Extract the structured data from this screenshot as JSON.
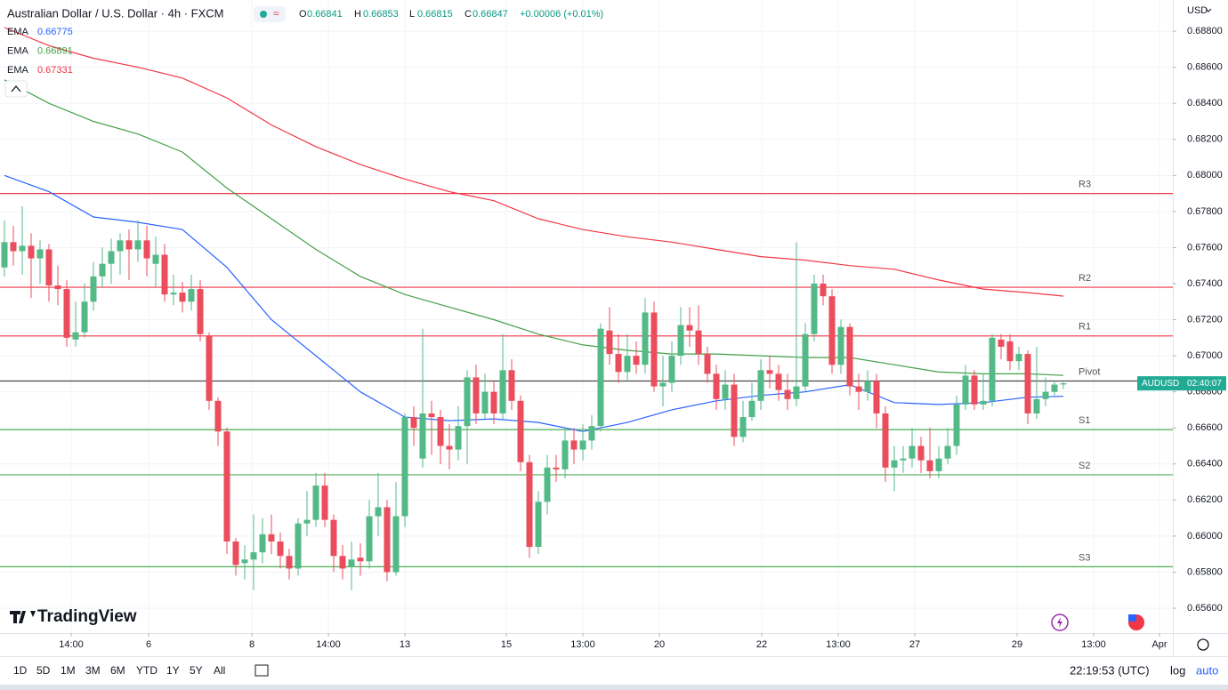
{
  "chart_data": {
    "type": "candlestick",
    "title": "Australian Dollar / U.S. Dollar · 4h · FXCM",
    "ohlc_labels": [
      "O",
      "H",
      "L",
      "C"
    ],
    "change": "+0.00006 (+0.01%)",
    "up_color": "#53b987",
    "down_color": "#eb4d5c",
    "open": [
      0.6749,
      0.6763,
      0.6758,
      0.6761,
      0.6754,
      0.6759,
      0.6739,
      0.6737,
      0.6709,
      0.6713,
      0.673,
      0.6744,
      0.6751,
      0.6758,
      0.6764,
      0.6759,
      0.6764,
      0.6751,
      0.6756,
      0.6734,
      0.6735,
      0.673,
      0.6737,
      0.6711,
      0.6675,
      0.6658,
      0.6597,
      0.6585,
      0.6587,
      0.6591,
      0.6601,
      0.6597,
      0.6589,
      0.6582,
      0.6607,
      0.6609,
      0.6628,
      0.6609,
      0.6589,
      0.6583,
      0.6588,
      0.6586,
      0.6611,
      0.6616,
      0.658,
      0.6611,
      0.6666,
      0.6643,
      0.6668,
      0.6666,
      0.665,
      0.6648,
      0.6661,
      0.6688,
      0.6668,
      0.668,
      0.6668,
      0.6692,
      0.6675,
      0.6641,
      0.6594,
      0.6619,
      0.6638,
      0.6637,
      0.6653,
      0.6648,
      0.6653,
      0.6661,
      0.6714,
      0.6701,
      0.6691,
      0.67,
      0.6695,
      0.6724,
      0.6683,
      0.6685,
      0.67,
      0.6717,
      0.6714,
      0.6701,
      0.669,
      0.6676,
      0.6684,
      0.6655,
      0.6666,
      0.6675,
      0.6692,
      0.669,
      0.6681,
      0.6676,
      0.6683,
      0.6712,
      0.674,
      0.6733,
      0.6695,
      0.6716,
      0.6683,
      0.668,
      0.6686,
      0.6668,
      0.6638,
      0.6642,
      0.6643,
      0.665,
      0.6642,
      0.6636,
      0.6643,
      0.665,
      0.6673,
      0.6689,
      0.6673,
      0.6675,
      0.6709,
      0.6708,
      0.6697,
      0.6701,
      0.6668,
      0.6676,
      0.668,
      0.66841
    ],
    "high": [
      0.6775,
      0.6772,
      0.6783,
      0.6768,
      0.6764,
      0.6762,
      0.675,
      0.6742,
      0.673,
      0.674,
      0.6752,
      0.676,
      0.6765,
      0.6768,
      0.677,
      0.6775,
      0.6772,
      0.6766,
      0.6762,
      0.6745,
      0.6741,
      0.6745,
      0.6742,
      0.6713,
      0.6677,
      0.666,
      0.6599,
      0.6595,
      0.6612,
      0.661,
      0.6612,
      0.6602,
      0.6593,
      0.661,
      0.6625,
      0.6635,
      0.6635,
      0.6612,
      0.6595,
      0.6597,
      0.6596,
      0.662,
      0.6635,
      0.662,
      0.663,
      0.6668,
      0.6672,
      0.6715,
      0.6675,
      0.667,
      0.6662,
      0.6672,
      0.6692,
      0.6695,
      0.669,
      0.6686,
      0.6712,
      0.6698,
      0.6678,
      0.6645,
      0.6625,
      0.6645,
      0.6645,
      0.666,
      0.666,
      0.6662,
      0.6667,
      0.6718,
      0.6727,
      0.6712,
      0.6712,
      0.6708,
      0.6732,
      0.673,
      0.67,
      0.6708,
      0.6727,
      0.6727,
      0.6728,
      0.6705,
      0.6695,
      0.6692,
      0.669,
      0.6675,
      0.6685,
      0.6698,
      0.67,
      0.6695,
      0.669,
      0.6763,
      0.6718,
      0.6745,
      0.6745,
      0.6737,
      0.672,
      0.6718,
      0.669,
      0.6692,
      0.669,
      0.6672,
      0.665,
      0.665,
      0.666,
      0.6655,
      0.666,
      0.665,
      0.666,
      0.6678,
      0.6695,
      0.6692,
      0.669,
      0.6712,
      0.6712,
      0.6712,
      0.6705,
      0.6703,
      0.6705,
      0.6688,
      0.6686,
      0.66853
    ],
    "low": [
      0.6744,
      0.675,
      0.6745,
      0.6732,
      0.674,
      0.673,
      0.6728,
      0.6705,
      0.6705,
      0.671,
      0.6725,
      0.6738,
      0.674,
      0.6745,
      0.6742,
      0.6752,
      0.6744,
      0.6738,
      0.673,
      0.6728,
      0.6724,
      0.6725,
      0.6708,
      0.667,
      0.665,
      0.659,
      0.6578,
      0.6576,
      0.657,
      0.6585,
      0.659,
      0.6582,
      0.6576,
      0.6578,
      0.66,
      0.6605,
      0.6605,
      0.658,
      0.6576,
      0.657,
      0.6578,
      0.6582,
      0.66,
      0.6575,
      0.6578,
      0.6605,
      0.665,
      0.6638,
      0.6645,
      0.664,
      0.6637,
      0.6642,
      0.664,
      0.6662,
      0.6665,
      0.6662,
      0.6665,
      0.667,
      0.6636,
      0.6588,
      0.659,
      0.6612,
      0.663,
      0.6632,
      0.664,
      0.6642,
      0.6648,
      0.6658,
      0.6695,
      0.6685,
      0.6686,
      0.669,
      0.669,
      0.668,
      0.6672,
      0.668,
      0.6695,
      0.6705,
      0.6695,
      0.6685,
      0.667,
      0.667,
      0.665,
      0.6652,
      0.6664,
      0.667,
      0.6682,
      0.6675,
      0.667,
      0.6672,
      0.668,
      0.6708,
      0.6728,
      0.669,
      0.669,
      0.6678,
      0.667,
      0.6675,
      0.666,
      0.663,
      0.6625,
      0.6635,
      0.6638,
      0.6635,
      0.6632,
      0.6632,
      0.664,
      0.6645,
      0.667,
      0.667,
      0.667,
      0.6672,
      0.6698,
      0.6692,
      0.6692,
      0.6662,
      0.6665,
      0.6672,
      0.6678,
      0.66815
    ],
    "close": [
      0.6763,
      0.6758,
      0.6761,
      0.6754,
      0.6759,
      0.6739,
      0.6737,
      0.671,
      0.6713,
      0.673,
      0.6744,
      0.6751,
      0.6758,
      0.6764,
      0.6759,
      0.6764,
      0.6754,
      0.6756,
      0.6734,
      0.6735,
      0.673,
      0.6737,
      0.6712,
      0.6675,
      0.6658,
      0.6597,
      0.6584,
      0.6587,
      0.6591,
      0.6601,
      0.6597,
      0.6589,
      0.6582,
      0.6607,
      0.6609,
      0.6628,
      0.6609,
      0.6589,
      0.6582,
      0.6587,
      0.6586,
      0.6611,
      0.6616,
      0.658,
      0.6611,
      0.6666,
      0.666,
      0.6668,
      0.6666,
      0.665,
      0.6648,
      0.6661,
      0.6688,
      0.6668,
      0.668,
      0.6668,
      0.6692,
      0.6675,
      0.6641,
      0.6594,
      0.6619,
      0.6638,
      0.6637,
      0.6653,
      0.6648,
      0.6653,
      0.6661,
      0.6715,
      0.6701,
      0.6691,
      0.67,
      0.6695,
      0.6724,
      0.6683,
      0.6685,
      0.67,
      0.6717,
      0.6714,
      0.6701,
      0.669,
      0.6676,
      0.6684,
      0.6655,
      0.6666,
      0.6675,
      0.6692,
      0.669,
      0.6681,
      0.6676,
      0.6683,
      0.6712,
      0.674,
      0.6733,
      0.6695,
      0.6716,
      0.6683,
      0.668,
      0.6686,
      0.6668,
      0.6638,
      0.6642,
      0.6643,
      0.665,
      0.6642,
      0.6636,
      0.6643,
      0.665,
      0.6673,
      0.6689,
      0.6673,
      0.6675,
      0.671,
      0.6705,
      0.6697,
      0.6701,
      0.6668,
      0.6676,
      0.668,
      0.6684,
      0.66847
    ],
    "series": [
      {
        "name": "EMA",
        "color": "#2962ff",
        "x": [
          0,
          5,
          10,
          15,
          20,
          25,
          30,
          35,
          40,
          45,
          50,
          55,
          60,
          65,
          70,
          75,
          80,
          85,
          90,
          95,
          100,
          105,
          110,
          115,
          119
        ],
        "values": [
          0.68,
          0.6791,
          0.6777,
          0.6774,
          0.677,
          0.6749,
          0.672,
          0.67,
          0.668,
          0.6666,
          0.6664,
          0.6665,
          0.6663,
          0.6658,
          0.6663,
          0.667,
          0.6675,
          0.6678,
          0.668,
          0.6684,
          0.6674,
          0.6673,
          0.6674,
          0.6677,
          0.66775
        ]
      },
      {
        "name": "EMA",
        "color": "#43a047",
        "x": [
          0,
          5,
          10,
          15,
          20,
          25,
          30,
          35,
          40,
          45,
          50,
          55,
          60,
          65,
          70,
          75,
          80,
          85,
          90,
          95,
          100,
          105,
          110,
          115,
          119
        ],
        "values": [
          0.6853,
          0.684,
          0.683,
          0.6823,
          0.6813,
          0.6793,
          0.6776,
          0.6759,
          0.6744,
          0.6734,
          0.6727,
          0.672,
          0.6712,
          0.6706,
          0.6703,
          0.6701,
          0.6701,
          0.67,
          0.6699,
          0.6699,
          0.6695,
          0.6691,
          0.669,
          0.669,
          0.66891
        ]
      },
      {
        "name": "EMA",
        "color": "#f23645",
        "x": [
          0,
          5,
          10,
          15,
          20,
          25,
          30,
          35,
          40,
          45,
          50,
          55,
          60,
          65,
          70,
          75,
          80,
          85,
          90,
          95,
          100,
          105,
          110,
          115,
          119
        ],
        "values": [
          0.6882,
          0.6872,
          0.6865,
          0.686,
          0.6854,
          0.6843,
          0.6828,
          0.6816,
          0.6806,
          0.6798,
          0.6791,
          0.6786,
          0.6776,
          0.677,
          0.6766,
          0.6763,
          0.6759,
          0.6755,
          0.6753,
          0.675,
          0.6748,
          0.6742,
          0.6737,
          0.6735,
          0.67331
        ]
      }
    ],
    "levels": [
      {
        "name": "R3",
        "value": 0.679,
        "color": "#f23645"
      },
      {
        "name": "R2",
        "value": 0.6738,
        "color": "#f23645"
      },
      {
        "name": "R1",
        "value": 0.6711,
        "color": "#f23645"
      },
      {
        "name": "Pivot",
        "value": 0.6686,
        "color": "#4a4a4a"
      },
      {
        "name": "S1",
        "value": 0.6659,
        "color": "#4caf50"
      },
      {
        "name": "S2",
        "value": 0.6634,
        "color": "#4caf50"
      },
      {
        "name": "S3",
        "value": 0.6583,
        "color": "#4caf50"
      }
    ],
    "xlim": [
      -0.5,
      131.3
    ],
    "xticks": [
      {
        "value": 7.5,
        "label": "14:00"
      },
      {
        "value": 16.2,
        "label": "6"
      },
      {
        "value": 27.8,
        "label": "8"
      },
      {
        "value": 36.4,
        "label": "14:00"
      },
      {
        "value": 45,
        "label": "13"
      },
      {
        "value": 56.4,
        "label": "15"
      },
      {
        "value": 65,
        "label": "13:00"
      },
      {
        "value": 73.6,
        "label": "20"
      },
      {
        "value": 85.1,
        "label": "22"
      },
      {
        "value": 93.7,
        "label": "13:00"
      },
      {
        "value": 102.3,
        "label": "27"
      },
      {
        "value": 113.8,
        "label": "29"
      },
      {
        "value": 122.4,
        "label": "13:00"
      },
      {
        "value": 129.8,
        "label": "Apr"
      }
    ],
    "ylim": [
      0.65462,
      0.68973
    ],
    "yticks": [
      {
        "value": 0.656,
        "label": "0.65600"
      },
      {
        "value": 0.658,
        "label": "0.65800"
      },
      {
        "value": 0.66,
        "label": "0.66000"
      },
      {
        "value": 0.662,
        "label": "0.66200"
      },
      {
        "value": 0.664,
        "label": "0.66400"
      },
      {
        "value": 0.666,
        "label": "0.66600"
      },
      {
        "value": 0.668,
        "label": "0.66800"
      },
      {
        "value": 0.67,
        "label": "0.67000"
      },
      {
        "value": 0.672,
        "label": "0.67200"
      },
      {
        "value": 0.674,
        "label": "0.67400"
      },
      {
        "value": 0.676,
        "label": "0.67600"
      },
      {
        "value": 0.678,
        "label": "0.67800"
      },
      {
        "value": 0.68,
        "label": "0.68000"
      },
      {
        "value": 0.682,
        "label": "0.68200"
      },
      {
        "value": 0.684,
        "label": "0.68400"
      },
      {
        "value": 0.686,
        "label": "0.68600"
      },
      {
        "value": 0.688,
        "label": "0.68800"
      }
    ],
    "grid": true
  },
  "currency": "USD",
  "symbol": "AUDUSD",
  "countdown": "02:40:07",
  "brand": "TradingView",
  "toolbar": {
    "ranges": [
      "1D",
      "5D",
      "1M",
      "3M",
      "6M",
      "YTD",
      "1Y",
      "5Y",
      "All"
    ],
    "clock": "22:19:53 (UTC)",
    "log": "log",
    "auto": "auto"
  }
}
